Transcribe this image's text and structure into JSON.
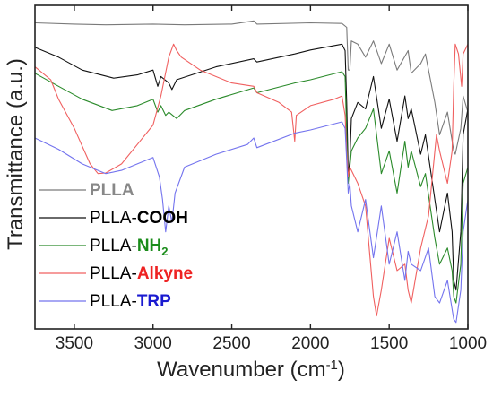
{
  "chart_data": {
    "type": "line",
    "title": "",
    "xlabel": "Wavenumber (cm",
    "xlabel_sup": "-1",
    "xlabel_close": ")",
    "ylabel": "Transmittance (a.u.)",
    "xlim": [
      3750,
      1000
    ],
    "x_reversed": true,
    "ylim": [
      0,
      100
    ],
    "y_ticks_labeled": false,
    "grid": false,
    "legend_position": "bottom-left",
    "xticks": [
      "3500",
      "3000",
      "2500",
      "2000",
      "1500",
      "1000"
    ],
    "xtick_values": [
      3500,
      3000,
      2500,
      2000,
      1500,
      1000
    ],
    "series": [
      {
        "name_prefix": "PLLA",
        "name_suffix": "",
        "name_sub": "",
        "color": "#7a7a7a",
        "label_color": "#888888",
        "points": [
          [
            3750,
            94.6
          ],
          [
            3500,
            94.2
          ],
          [
            3300,
            94.0
          ],
          [
            3000,
            94.2
          ],
          [
            2800,
            94.0
          ],
          [
            2500,
            94.2
          ],
          [
            2360,
            95.2
          ],
          [
            2340,
            94.2
          ],
          [
            2000,
            94.6
          ],
          [
            1800,
            94.4
          ],
          [
            1770,
            93.2
          ],
          [
            1760,
            80
          ],
          [
            1750,
            80
          ],
          [
            1740,
            89
          ],
          [
            1700,
            88
          ],
          [
            1650,
            84
          ],
          [
            1600,
            89
          ],
          [
            1550,
            82
          ],
          [
            1500,
            88
          ],
          [
            1450,
            80
          ],
          [
            1380,
            86
          ],
          [
            1360,
            79
          ],
          [
            1300,
            82
          ],
          [
            1270,
            85
          ],
          [
            1210,
            70
          ],
          [
            1180,
            60
          ],
          [
            1130,
            67
          ],
          [
            1090,
            55
          ],
          [
            1080,
            54
          ],
          [
            1045,
            62
          ],
          [
            1030,
            72
          ],
          [
            1000,
            67
          ]
        ]
      },
      {
        "name_prefix": "PLLA-",
        "name_suffix": "COOH",
        "name_sub": "",
        "color": "#111111",
        "label_color": "#000000",
        "points": [
          [
            3750,
            87
          ],
          [
            3600,
            84
          ],
          [
            3450,
            80
          ],
          [
            3250,
            77.5
          ],
          [
            3100,
            78.5
          ],
          [
            3000,
            80
          ],
          [
            2970,
            75
          ],
          [
            2950,
            78
          ],
          [
            2900,
            76
          ],
          [
            2880,
            74
          ],
          [
            2850,
            77
          ],
          [
            2600,
            81
          ],
          [
            2360,
            83.5
          ],
          [
            2340,
            82.5
          ],
          [
            2100,
            85
          ],
          [
            2000,
            86.2
          ],
          [
            1800,
            88
          ],
          [
            1780,
            86
          ],
          [
            1770,
            70
          ],
          [
            1760,
            48
          ],
          [
            1750,
            52
          ],
          [
            1740,
            65
          ],
          [
            1700,
            70
          ],
          [
            1650,
            68
          ],
          [
            1600,
            78
          ],
          [
            1550,
            62
          ],
          [
            1500,
            71
          ],
          [
            1450,
            58
          ],
          [
            1400,
            72
          ],
          [
            1380,
            65
          ],
          [
            1360,
            68
          ],
          [
            1300,
            54
          ],
          [
            1270,
            60
          ],
          [
            1210,
            40
          ],
          [
            1180,
            30
          ],
          [
            1130,
            42
          ],
          [
            1100,
            30
          ],
          [
            1090,
            15
          ],
          [
            1075,
            12
          ],
          [
            1045,
            30
          ],
          [
            1030,
            60
          ],
          [
            1000,
            68
          ]
        ]
      },
      {
        "name_prefix": "PLLA-",
        "name_suffix": "NH",
        "name_sub": "2",
        "color": "#2a8a2a",
        "label_color": "#1a8c1a",
        "points": [
          [
            3750,
            79
          ],
          [
            3600,
            75
          ],
          [
            3450,
            71
          ],
          [
            3260,
            67.5
          ],
          [
            3100,
            69
          ],
          [
            3000,
            71
          ],
          [
            2970,
            67
          ],
          [
            2950,
            69
          ],
          [
            2920,
            66
          ],
          [
            2900,
            67
          ],
          [
            2850,
            65
          ],
          [
            2800,
            67.5
          ],
          [
            2600,
            71
          ],
          [
            2360,
            74.5
          ],
          [
            2340,
            73
          ],
          [
            2100,
            76
          ],
          [
            2000,
            77
          ],
          [
            1800,
            79.5
          ],
          [
            1780,
            78
          ],
          [
            1770,
            60
          ],
          [
            1760,
            45
          ],
          [
            1750,
            50
          ],
          [
            1740,
            55
          ],
          [
            1700,
            59
          ],
          [
            1650,
            62
          ],
          [
            1600,
            68
          ],
          [
            1550,
            48
          ],
          [
            1500,
            55
          ],
          [
            1450,
            42
          ],
          [
            1400,
            58
          ],
          [
            1380,
            50
          ],
          [
            1360,
            55
          ],
          [
            1300,
            44
          ],
          [
            1270,
            48
          ],
          [
            1210,
            28
          ],
          [
            1180,
            20
          ],
          [
            1130,
            25
          ],
          [
            1100,
            18
          ],
          [
            1090,
            10
          ],
          [
            1075,
            8
          ],
          [
            1045,
            20
          ],
          [
            1030,
            45
          ],
          [
            1000,
            50
          ]
        ]
      },
      {
        "name_prefix": "PLLA-",
        "name_suffix": "Alkyne",
        "name_sub": "",
        "color": "#f06060",
        "label_color": "#ee2222",
        "points": [
          [
            3750,
            81
          ],
          [
            3650,
            77
          ],
          [
            3600,
            71
          ],
          [
            3500,
            62
          ],
          [
            3400,
            51
          ],
          [
            3350,
            48
          ],
          [
            3300,
            48.2
          ],
          [
            3200,
            51
          ],
          [
            3100,
            57
          ],
          [
            3000,
            63
          ],
          [
            2950,
            72
          ],
          [
            2900,
            84
          ],
          [
            2870,
            88
          ],
          [
            2850,
            86
          ],
          [
            2820,
            84
          ],
          [
            2700,
            80
          ],
          [
            2500,
            76
          ],
          [
            2360,
            75
          ],
          [
            2340,
            73
          ],
          [
            2200,
            70
          ],
          [
            2120,
            67
          ],
          [
            2100,
            58
          ],
          [
            2090,
            66
          ],
          [
            2000,
            69
          ],
          [
            1850,
            71
          ],
          [
            1800,
            72
          ],
          [
            1780,
            66
          ],
          [
            1770,
            55
          ],
          [
            1760,
            47
          ],
          [
            1750,
            50
          ],
          [
            1700,
            45
          ],
          [
            1650,
            38
          ],
          [
            1600,
            10
          ],
          [
            1580,
            4
          ],
          [
            1550,
            12
          ],
          [
            1500,
            28
          ],
          [
            1450,
            18
          ],
          [
            1400,
            20
          ],
          [
            1380,
            12
          ],
          [
            1360,
            8
          ],
          [
            1300,
            25
          ],
          [
            1250,
            35
          ],
          [
            1200,
            60
          ],
          [
            1180,
            55
          ],
          [
            1130,
            45
          ],
          [
            1100,
            55
          ],
          [
            1090,
            75
          ],
          [
            1080,
            88
          ],
          [
            1060,
            85
          ],
          [
            1040,
            75
          ],
          [
            1030,
            85
          ],
          [
            1000,
            88
          ]
        ]
      },
      {
        "name_prefix": "PLLA-",
        "name_suffix": "TRP",
        "name_sub": "",
        "color": "#7373ee",
        "label_color": "#1a1ad0",
        "points": [
          [
            3750,
            59
          ],
          [
            3600,
            55.5
          ],
          [
            3450,
            51
          ],
          [
            3300,
            48
          ],
          [
            3200,
            49
          ],
          [
            3100,
            51
          ],
          [
            3000,
            53
          ],
          [
            2960,
            47
          ],
          [
            2940,
            40
          ],
          [
            2920,
            30
          ],
          [
            2900,
            38
          ],
          [
            2880,
            33
          ],
          [
            2860,
            42
          ],
          [
            2800,
            50
          ],
          [
            2600,
            54
          ],
          [
            2400,
            57
          ],
          [
            2360,
            59
          ],
          [
            2340,
            56
          ],
          [
            2100,
            60.5
          ],
          [
            2000,
            61.5
          ],
          [
            1800,
            64
          ],
          [
            1780,
            62
          ],
          [
            1770,
            52
          ],
          [
            1760,
            42
          ],
          [
            1750,
            45
          ],
          [
            1740,
            38
          ],
          [
            1700,
            30
          ],
          [
            1650,
            40
          ],
          [
            1600,
            22
          ],
          [
            1550,
            38
          ],
          [
            1500,
            20
          ],
          [
            1450,
            30
          ],
          [
            1400,
            15
          ],
          [
            1380,
            24
          ],
          [
            1360,
            20
          ],
          [
            1300,
            18
          ],
          [
            1250,
            25
          ],
          [
            1210,
            10
          ],
          [
            1180,
            8
          ],
          [
            1130,
            15
          ],
          [
            1100,
            6
          ],
          [
            1090,
            3
          ],
          [
            1075,
            2
          ],
          [
            1045,
            12
          ],
          [
            1030,
            30
          ],
          [
            1000,
            40
          ]
        ]
      }
    ]
  }
}
